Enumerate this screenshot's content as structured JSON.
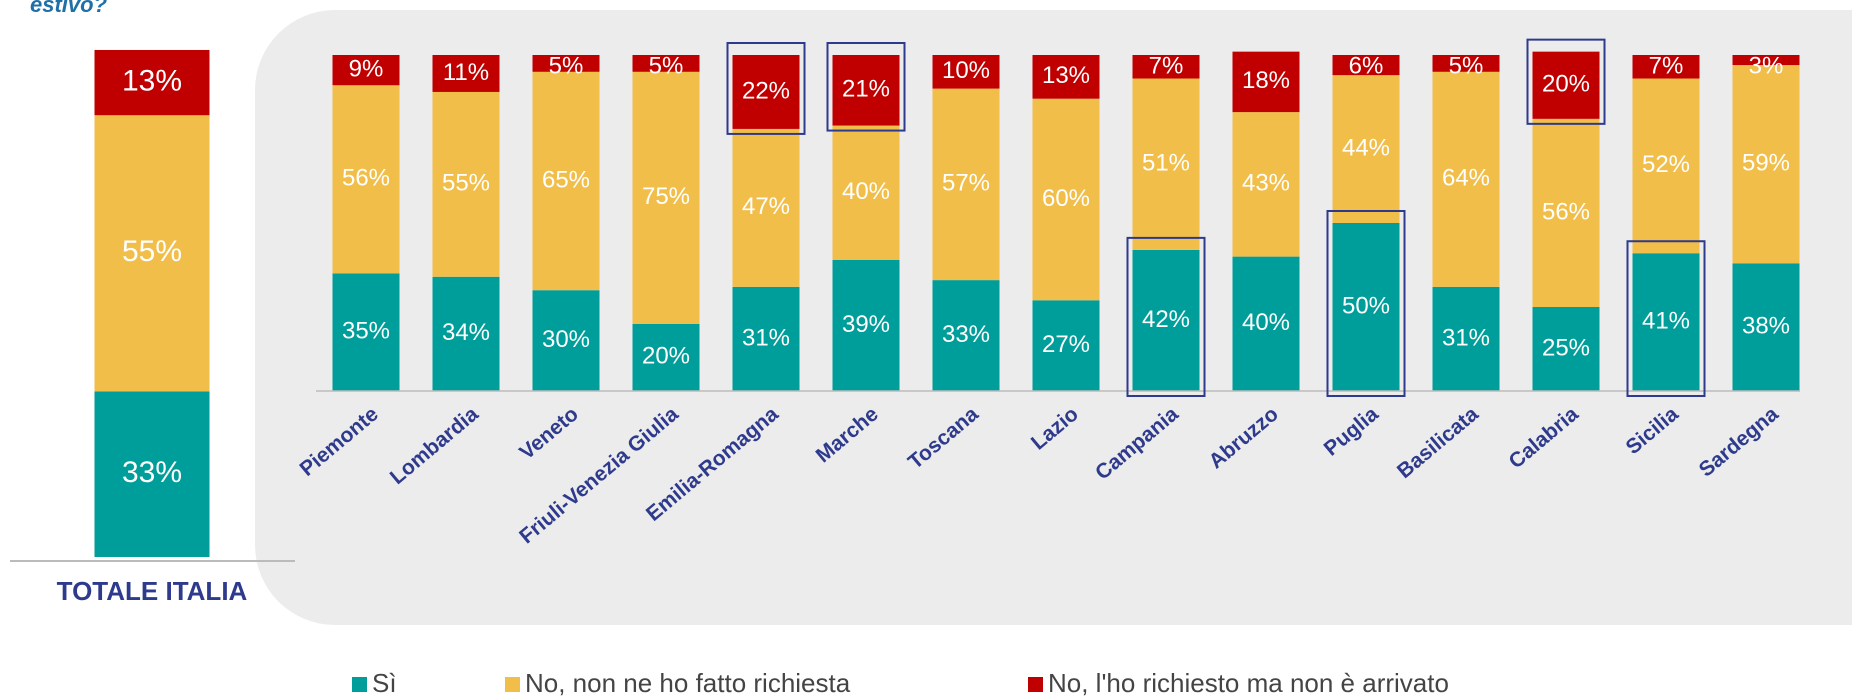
{
  "chart_data": [
    {
      "type": "stacked_bar",
      "title": "estivo?",
      "categories": [
        "TOTALE ITALIA"
      ],
      "ylim": [
        0,
        100
      ],
      "series": [
        {
          "color": "#009e9a",
          "values": [
            33
          ],
          "value_labels": [
            "33%"
          ]
        },
        {
          "color": "#f2be4a",
          "values": [
            55
          ],
          "value_labels": [
            "55%"
          ]
        },
        {
          "color": "#c00000",
          "values": [
            13
          ],
          "value_labels": [
            "13%"
          ]
        }
      ]
    },
    {
      "type": "stacked_bar",
      "categories": [
        "Piemonte",
        "Lombardia",
        "Veneto",
        "Friuli-Venezia Giulia",
        "Emilia-Romagna",
        "Marche",
        "Toscana",
        "Lazio",
        "Campania",
        "Abruzzo",
        "Puglia",
        "Basilicata",
        "Calabria",
        "Sicilia",
        "Sardegna"
      ],
      "ylim": [
        0,
        100
      ],
      "series": [
        {
          "name": "Sì",
          "color": "#009e9a",
          "values": [
            35,
            34,
            30,
            20,
            31,
            39,
            33,
            27,
            42,
            40,
            50,
            31,
            25,
            41,
            38
          ],
          "value_labels": [
            "35%",
            "34%",
            "30%",
            "20%",
            "31%",
            "39%",
            "33%",
            "27%",
            "42%",
            "40%",
            "50%",
            "31%",
            "25%",
            "41%",
            "38%"
          ]
        },
        {
          "name": "No, non ne ho fatto richiesta",
          "color": "#f2be4a",
          "values": [
            56,
            55,
            65,
            75,
            47,
            40,
            57,
            60,
            51,
            43,
            44,
            64,
            56,
            52,
            59
          ],
          "value_labels": [
            "56%",
            "55%",
            "65%",
            "75%",
            "47%",
            "40%",
            "57%",
            "60%",
            "51%",
            "43%",
            "44%",
            "64%",
            "56%",
            "52%",
            "59%"
          ]
        },
        {
          "name": "No, l'ho richiesto ma non è arrivato",
          "color": "#c00000",
          "values": [
            9,
            11,
            5,
            5,
            22,
            21,
            10,
            13,
            7,
            18,
            6,
            5,
            20,
            7,
            3
          ],
          "value_labels": [
            "9%",
            "11%",
            "5%",
            "5%",
            "22%",
            "21%",
            "10%",
            "13%",
            "7%",
            "18%",
            "6%",
            "5%",
            "20%",
            "7%",
            "3%"
          ]
        }
      ]
    }
  ]
}
